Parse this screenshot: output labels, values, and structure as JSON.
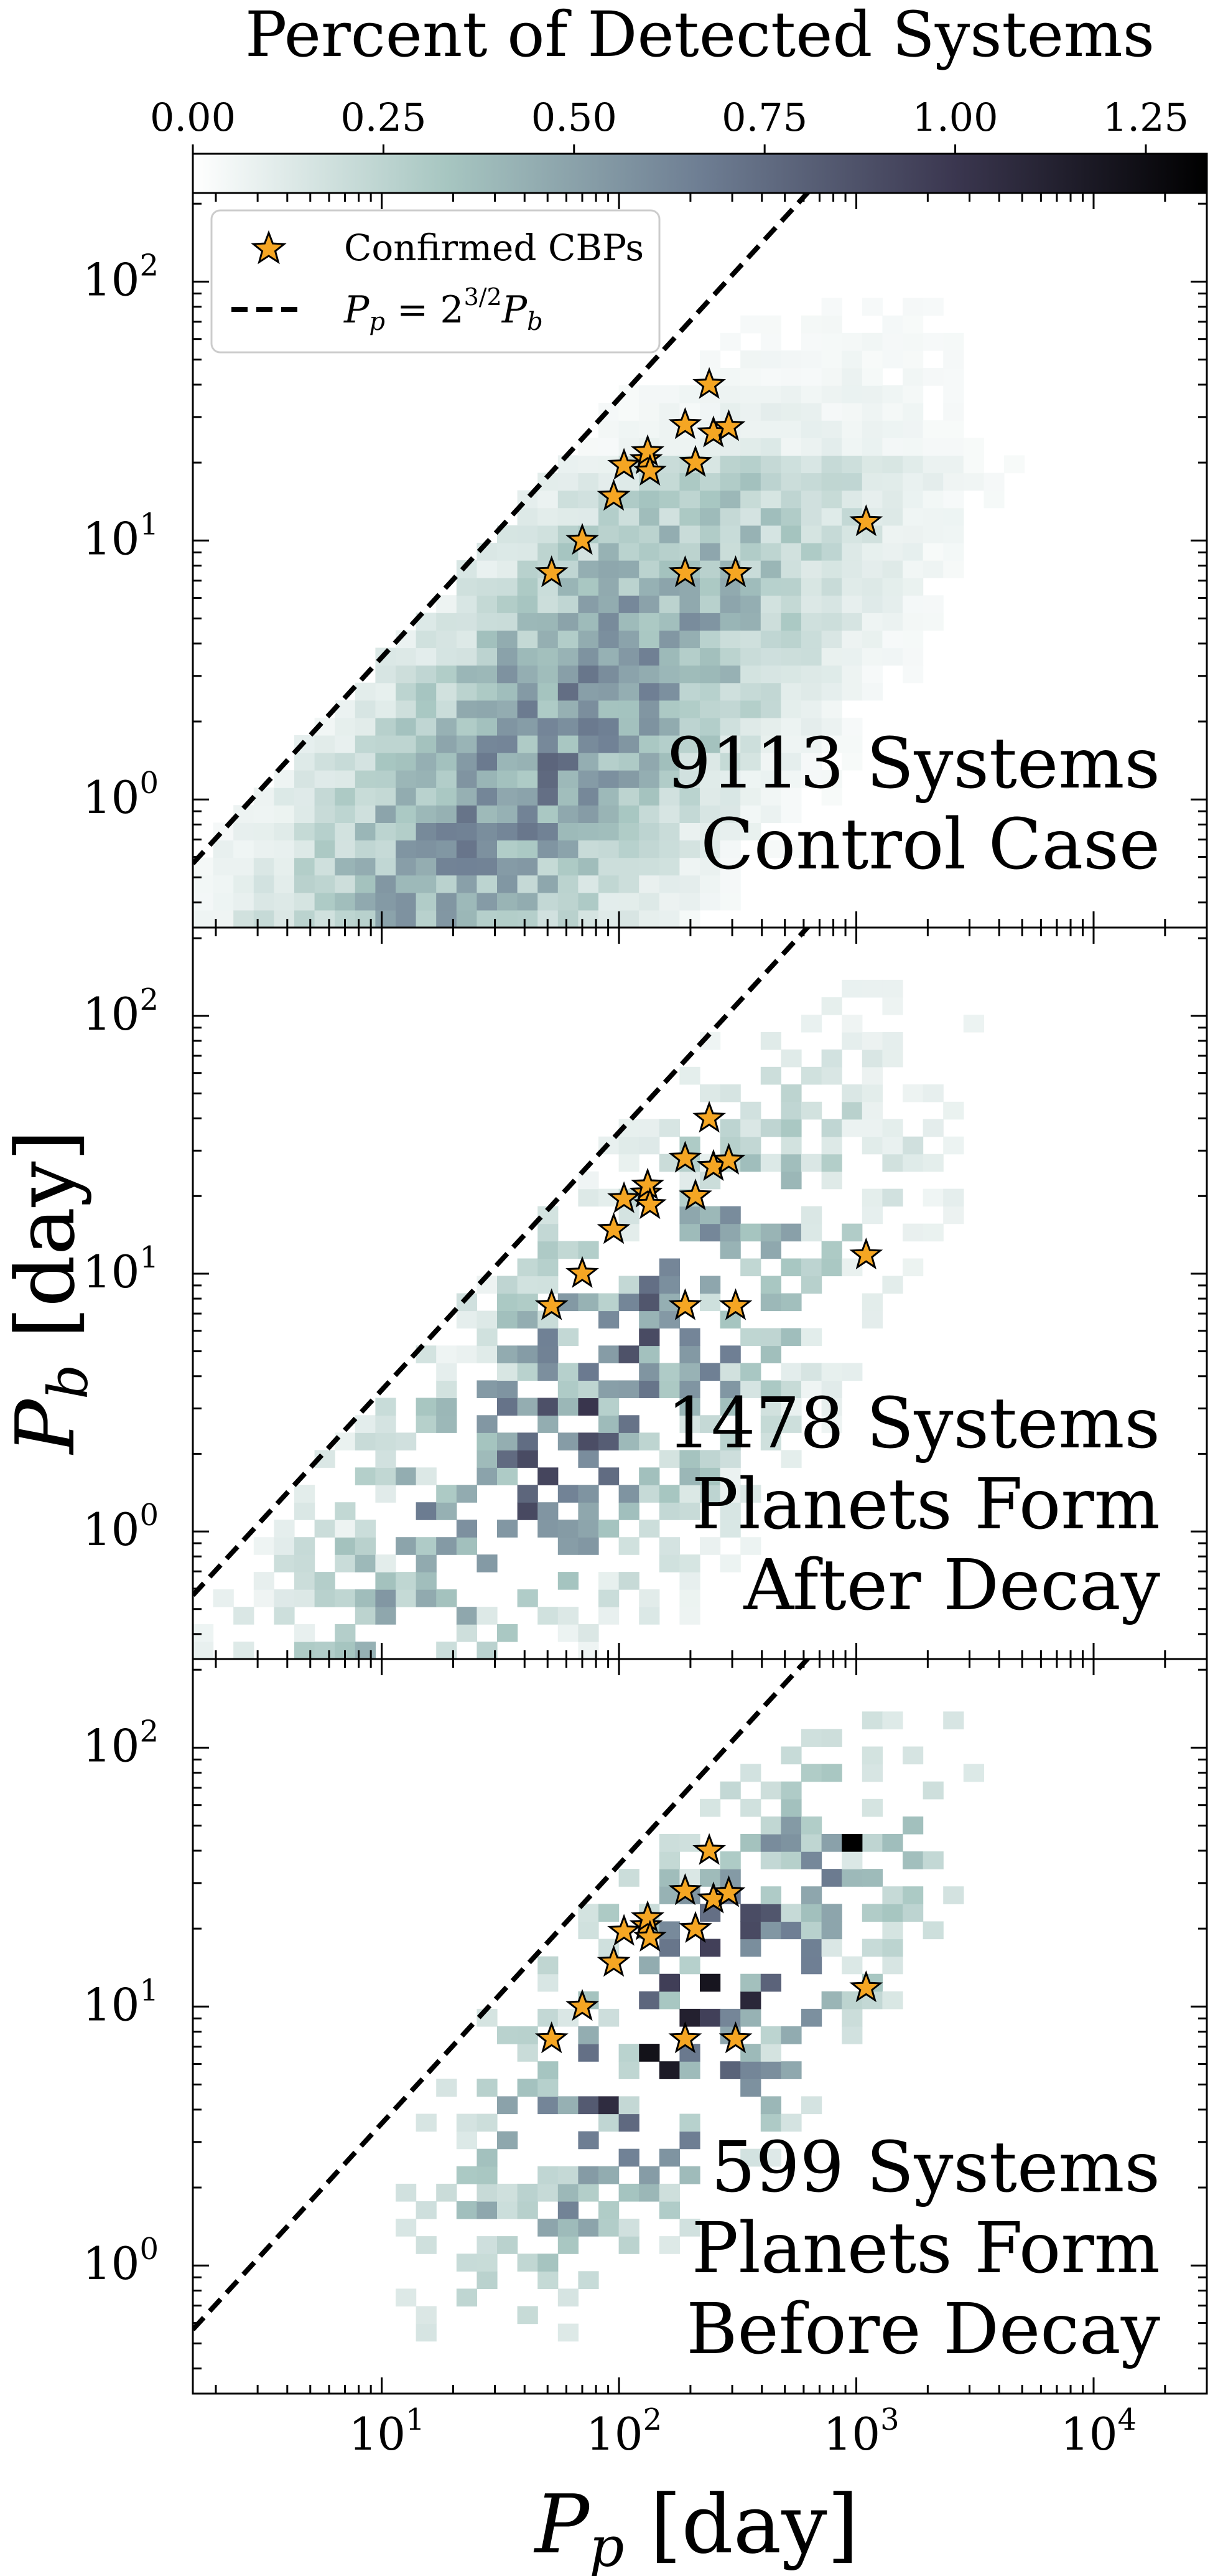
{
  "colorbar": {
    "label": "Percent of Detected Systems",
    "ticks": [
      0.0,
      0.25,
      0.5,
      0.75,
      1.0,
      1.25
    ],
    "tick_labels": [
      "0.00",
      "0.25",
      "0.50",
      "0.75",
      "1.00",
      "1.25"
    ],
    "vmin": 0.0,
    "vmax": 1.33,
    "colors": [
      "#ffffff",
      "#a7c6c1",
      "#6e7e93",
      "#3b3750",
      "#000000"
    ]
  },
  "axes": {
    "xlabel_base": "P",
    "xlabel_sub": "p",
    "xlabel_unit": "[day]",
    "ylabel_base": "P",
    "ylabel_sub": "b",
    "ylabel_unit": "[day]"
  },
  "legend": {
    "items": [
      {
        "label": "Confirmed CBPs"
      },
      {
        "label": "Pp = 2^(3/2) Pb",
        "lhs": "P",
        "lhs_sub": "p",
        "eq": " = 2",
        "exp": "3/2",
        "rhs": "P",
        "rhs_sub": "b"
      }
    ]
  },
  "chart_data": [
    {
      "type": "heatmap",
      "panel": "top",
      "line1": "9113 Systems",
      "line2": "Control Case",
      "xscale": "log",
      "yscale": "log",
      "xlim": [
        1.6,
        30000
      ],
      "ylim": [
        0.32,
        220
      ],
      "xticks": [
        10,
        100,
        1000,
        10000
      ],
      "xtick_labels": [
        "10",
        "10",
        "10",
        "10"
      ],
      "xtick_exps": [
        "1",
        "2",
        "3",
        "4"
      ],
      "yticks": [
        1,
        10,
        100
      ],
      "ytick_labels": [
        "10",
        "10",
        "10"
      ],
      "ytick_exps": [
        "0",
        "1",
        "2"
      ],
      "stability_limit_factor": 2.828,
      "scatter_points": [
        [
          52,
          7.5
        ],
        [
          70,
          10
        ],
        [
          95,
          14.8
        ],
        [
          105,
          19.5
        ],
        [
          130,
          20.5
        ],
        [
          132,
          22
        ],
        [
          135,
          18.5
        ],
        [
          190,
          28
        ],
        [
          210,
          20
        ],
        [
          240,
          40
        ],
        [
          250,
          26
        ],
        [
          290,
          27.5
        ],
        [
          190,
          7.5
        ],
        [
          310,
          7.5
        ],
        [
          1100,
          11.8
        ]
      ]
    },
    {
      "type": "heatmap",
      "panel": "middle",
      "line1": "1478 Systems",
      "line2": "Planets Form",
      "line3": "After Decay",
      "xscale": "log",
      "yscale": "log",
      "xlim": [
        1.6,
        30000
      ],
      "ylim": [
        0.32,
        220
      ],
      "xticks": [
        10,
        100,
        1000,
        10000
      ],
      "xtick_labels": [
        "10",
        "10",
        "10",
        "10"
      ],
      "xtick_exps": [
        "1",
        "2",
        "3",
        "4"
      ],
      "yticks": [
        1,
        10,
        100
      ],
      "ytick_labels": [
        "10",
        "10",
        "10"
      ],
      "ytick_exps": [
        "0",
        "1",
        "2"
      ],
      "stability_limit_factor": 2.828,
      "scatter_points": [
        [
          52,
          7.5
        ],
        [
          70,
          10
        ],
        [
          95,
          14.8
        ],
        [
          105,
          19.5
        ],
        [
          130,
          20.5
        ],
        [
          132,
          22
        ],
        [
          135,
          18.5
        ],
        [
          190,
          28
        ],
        [
          210,
          20
        ],
        [
          240,
          40
        ],
        [
          250,
          26
        ],
        [
          290,
          27.5
        ],
        [
          190,
          7.5
        ],
        [
          310,
          7.5
        ],
        [
          1100,
          11.8
        ]
      ]
    },
    {
      "type": "heatmap",
      "panel": "bottom",
      "line1": "599 Systems",
      "line2": "Planets Form",
      "line3": "Before Decay",
      "xscale": "log",
      "yscale": "log",
      "xlim": [
        1.6,
        30000
      ],
      "ylim": [
        0.32,
        220
      ],
      "xticks": [
        10,
        100,
        1000,
        10000
      ],
      "xtick_labels": [
        "10",
        "10",
        "10",
        "10"
      ],
      "xtick_exps": [
        "1",
        "2",
        "3",
        "4"
      ],
      "yticks": [
        1,
        10,
        100
      ],
      "ytick_labels": [
        "10",
        "10",
        "10"
      ],
      "ytick_exps": [
        "0",
        "1",
        "2"
      ],
      "stability_limit_factor": 2.828,
      "scatter_points": [
        [
          52,
          7.5
        ],
        [
          70,
          10
        ],
        [
          95,
          14.8
        ],
        [
          105,
          19.5
        ],
        [
          130,
          20.5
        ],
        [
          132,
          22
        ],
        [
          135,
          18.5
        ],
        [
          190,
          28
        ],
        [
          210,
          20
        ],
        [
          240,
          40
        ],
        [
          250,
          26
        ],
        [
          290,
          27.5
        ],
        [
          190,
          7.5
        ],
        [
          310,
          7.5
        ],
        [
          1100,
          11.8
        ]
      ]
    }
  ]
}
